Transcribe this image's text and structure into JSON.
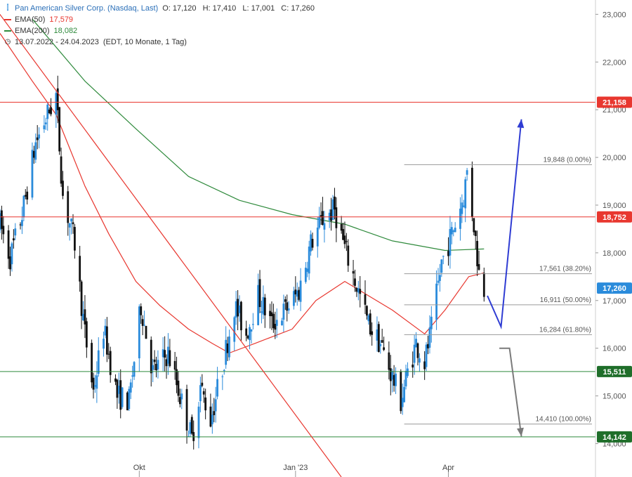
{
  "legend": {
    "title": "Pan American Silver Corp. (Nasdaq, Last)",
    "ohlc": {
      "o": "O: 17,120",
      "h": "H: 17,410",
      "l": "L: 17,001",
      "c": "C: 17,260"
    },
    "ema50": {
      "label": "EMA(50)",
      "value": "17,579",
      "color": "#e8372f"
    },
    "ema200": {
      "label": "EMA(200)",
      "value": "18,082",
      "color": "#2f8a3c"
    },
    "range": "13.07.2022 - 24.04.2023",
    "range_info": "(EDT, 10 Monate, 1 Tag)"
  },
  "chart_data": {
    "type": "candlestick",
    "y_axis": {
      "min": 13.3,
      "max": 23.3,
      "ticks": [
        {
          "v": 14,
          "label": "14,000"
        },
        {
          "v": 15,
          "label": "15,000"
        },
        {
          "v": 16,
          "label": "16,000"
        },
        {
          "v": 17,
          "label": "17,000"
        },
        {
          "v": 18,
          "label": "18,000"
        },
        {
          "v": 19,
          "label": "19,000"
        },
        {
          "v": 20,
          "label": "20,000"
        },
        {
          "v": 21,
          "label": "21,000"
        },
        {
          "v": 22,
          "label": "22,000"
        },
        {
          "v": 23,
          "label": "23,000"
        }
      ]
    },
    "x_axis": {
      "start": "2022-07-13",
      "end": "2023-05-10",
      "ticks": [
        {
          "date": "2022-10-03",
          "label": "Okt"
        },
        {
          "date": "2023-01-03",
          "label": "Jan '23"
        },
        {
          "date": "2023-04-03",
          "label": "Apr"
        }
      ]
    },
    "price_anchors": [
      [
        "2022-07-13",
        18.6
      ],
      [
        "2022-07-19",
        17.9
      ],
      [
        "2022-07-26",
        18.8
      ],
      [
        "2022-08-03",
        20.3
      ],
      [
        "2022-08-10",
        20.9
      ],
      [
        "2022-08-15",
        21.3
      ],
      [
        "2022-08-19",
        19.2
      ],
      [
        "2022-08-26",
        18.2
      ],
      [
        "2022-09-01",
        16.3
      ],
      [
        "2022-09-06",
        15.1
      ],
      [
        "2022-09-12",
        16.4
      ],
      [
        "2022-09-20",
        15.0
      ],
      [
        "2022-09-27",
        14.9
      ],
      [
        "2022-10-04",
        16.9
      ],
      [
        "2022-10-11",
        15.5
      ],
      [
        "2022-10-20",
        15.9
      ],
      [
        "2022-10-27",
        15.0
      ],
      [
        "2022-11-03",
        14.1
      ],
      [
        "2022-11-08",
        15.2
      ],
      [
        "2022-11-14",
        14.5
      ],
      [
        "2022-11-21",
        15.6
      ],
      [
        "2022-11-28",
        16.9
      ],
      [
        "2022-12-05",
        16.3
      ],
      [
        "2022-12-12",
        17.1
      ],
      [
        "2022-12-20",
        16.5
      ],
      [
        "2022-12-28",
        16.8
      ],
      [
        "2023-01-05",
        17.2
      ],
      [
        "2023-01-12",
        18.2
      ],
      [
        "2023-01-19",
        18.7
      ],
      [
        "2023-01-26",
        18.9
      ],
      [
        "2023-02-01",
        18.1
      ],
      [
        "2023-02-08",
        17.3
      ],
      [
        "2023-02-15",
        16.5
      ],
      [
        "2023-02-22",
        16.1
      ],
      [
        "2023-03-01",
        15.4
      ],
      [
        "2023-03-06",
        14.9
      ],
      [
        "2023-03-10",
        15.5
      ],
      [
        "2023-03-15",
        16.1
      ],
      [
        "2023-03-20",
        15.7
      ],
      [
        "2023-03-24",
        16.4
      ],
      [
        "2023-03-30",
        17.8
      ],
      [
        "2023-04-05",
        18.4
      ],
      [
        "2023-04-12",
        19.2
      ],
      [
        "2023-04-14",
        19.7
      ],
      [
        "2023-04-18",
        18.6
      ],
      [
        "2023-04-21",
        17.6
      ],
      [
        "2023-04-24",
        17.26
      ]
    ],
    "ema50": [
      [
        "2022-07-13",
        22.6
      ],
      [
        "2022-08-01",
        21.6
      ],
      [
        "2022-08-15",
        20.9
      ],
      [
        "2022-09-01",
        19.4
      ],
      [
        "2022-09-15",
        18.4
      ],
      [
        "2022-10-01",
        17.4
      ],
      [
        "2022-10-15",
        16.9
      ],
      [
        "2022-11-01",
        16.4
      ],
      [
        "2022-11-15",
        16.1
      ],
      [
        "2022-11-25",
        15.9
      ],
      [
        "2022-12-10",
        16.1
      ],
      [
        "2023-01-01",
        16.4
      ],
      [
        "2023-01-15",
        17.0
      ],
      [
        "2023-02-01",
        17.4
      ],
      [
        "2023-02-15",
        17.1
      ],
      [
        "2023-03-01",
        16.8
      ],
      [
        "2023-03-20",
        16.3
      ],
      [
        "2023-04-01",
        16.8
      ],
      [
        "2023-04-15",
        17.5
      ],
      [
        "2023-04-24",
        17.58
      ]
    ],
    "ema200": [
      [
        "2022-08-01",
        22.9
      ],
      [
        "2022-09-01",
        21.6
      ],
      [
        "2022-10-01",
        20.6
      ],
      [
        "2022-11-01",
        19.6
      ],
      [
        "2022-12-01",
        19.1
      ],
      [
        "2023-01-01",
        18.8
      ],
      [
        "2023-02-01",
        18.6
      ],
      [
        "2023-03-01",
        18.25
      ],
      [
        "2023-04-01",
        18.05
      ],
      [
        "2023-04-24",
        18.08
      ]
    ],
    "horizontal_lines": [
      {
        "v": 21.158,
        "label": "21,158",
        "color": "#e8372f",
        "label_bg": "#e8372f"
      },
      {
        "v": 18.752,
        "label": "18,752",
        "color": "#e8372f",
        "label_bg": "#e8372f"
      },
      {
        "v": 15.511,
        "label": "15,511",
        "color": "#2f8a3c",
        "label_bg": "#1f6e2a"
      },
      {
        "v": 14.142,
        "label": "14,142",
        "color": "#2f8a3c",
        "label_bg": "#1f6e2a"
      }
    ],
    "current_price": {
      "v": 17.26,
      "label": "17,260",
      "label_bg": "#2a8bdb"
    },
    "fibonacci": {
      "start": "2023-03-08",
      "end": "2023-04-29",
      "levels": [
        {
          "v": 19.848,
          "text": "19,848 (0.00%)"
        },
        {
          "v": 17.561,
          "text": "17,561 (38.20%)"
        },
        {
          "v": 16.911,
          "text": "16,911 (50.00%)"
        },
        {
          "v": 16.284,
          "text": "16,284 (61.80%)"
        },
        {
          "v": 14.41,
          "text": "14,410 (100.00%)"
        }
      ]
    },
    "trendline": {
      "points": [
        [
          "2022-08-13",
          21.5
        ],
        [
          "2022-12-05",
          16.0
        ]
      ],
      "color": "#e8372f"
    },
    "scenario_blue": {
      "points": [
        [
          "2023-04-26",
          17.1
        ],
        [
          "2023-05-04",
          16.45
        ],
        [
          "2023-05-16",
          20.8
        ]
      ],
      "color": "#2f3cd3"
    },
    "scenario_gray": {
      "points": [
        [
          "2023-05-03",
          16.0
        ],
        [
          "2023-05-09",
          16.0
        ],
        [
          "2023-05-16",
          14.15
        ]
      ],
      "color": "#7a7a7a"
    }
  }
}
